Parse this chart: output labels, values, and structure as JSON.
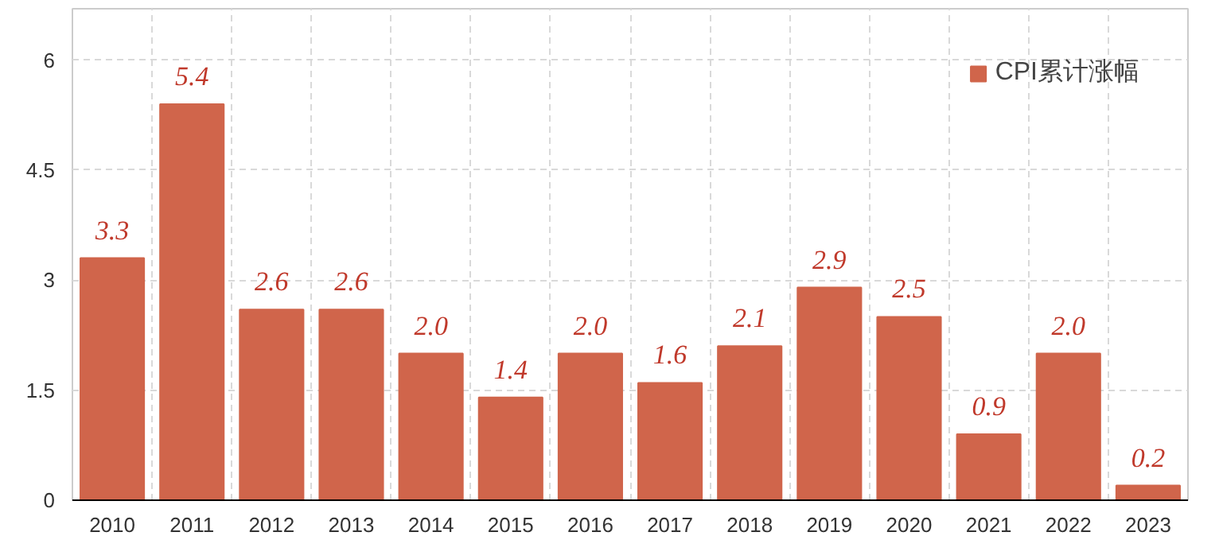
{
  "chart_data": {
    "type": "bar",
    "categories": [
      "2010",
      "2011",
      "2012",
      "2013",
      "2014",
      "2015",
      "2016",
      "2017",
      "2018",
      "2019",
      "2020",
      "2021",
      "2022",
      "2023"
    ],
    "series": [
      {
        "name": "CPI累计涨幅",
        "color": "#d0654b",
        "values": [
          3.3,
          5.4,
          2.6,
          2.6,
          2.0,
          1.4,
          2.0,
          1.6,
          2.1,
          2.9,
          2.5,
          0.9,
          2.0,
          0.2
        ]
      }
    ],
    "value_labels": [
      "3.3",
      "5.4",
      "2.6",
      "2.6",
      "2.0",
      "1.4",
      "2.0",
      "1.6",
      "2.1",
      "2.9",
      "2.5",
      "0.9",
      "2.0",
      "0.2"
    ],
    "ylim": [
      0,
      6.7
    ],
    "yticks": [
      0,
      1.5,
      3,
      4.5,
      6
    ],
    "grid": true,
    "legend": "top right"
  }
}
